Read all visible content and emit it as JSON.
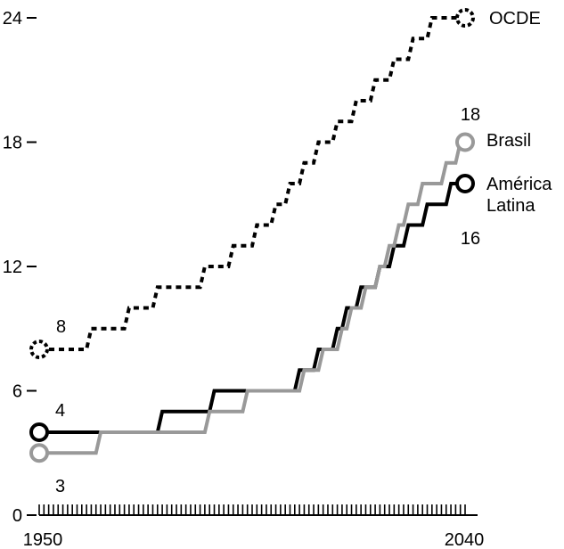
{
  "chart_data": {
    "type": "line",
    "title": "",
    "xlabel": "",
    "ylabel": "",
    "x_tick_labels": [
      "1950",
      "2040"
    ],
    "y_ticks": [
      0,
      6,
      12,
      18,
      24
    ],
    "xlim": [
      1950,
      2040
    ],
    "ylim": [
      0,
      24
    ],
    "grid": false,
    "legend": "inline-labels",
    "series": [
      {
        "name": "OCDE",
        "style": "dotted",
        "color": "#000000",
        "points": [
          [
            1950,
            8
          ],
          [
            1960,
            8
          ],
          [
            1961,
            9
          ],
          [
            1968,
            9
          ],
          [
            1969,
            10
          ],
          [
            1974,
            10
          ],
          [
            1975,
            11
          ],
          [
            1984,
            11
          ],
          [
            1985,
            12
          ],
          [
            1990,
            12
          ],
          [
            1991,
            13
          ],
          [
            1995,
            13
          ],
          [
            1996,
            14
          ],
          [
            1999,
            14
          ],
          [
            2000,
            15
          ],
          [
            2002,
            15
          ],
          [
            2003,
            16
          ],
          [
            2005,
            16
          ],
          [
            2006,
            17
          ],
          [
            2008,
            17
          ],
          [
            2009,
            18
          ],
          [
            2012,
            18
          ],
          [
            2013,
            19
          ],
          [
            2016,
            19
          ],
          [
            2017,
            20
          ],
          [
            2020,
            20
          ],
          [
            2021,
            21
          ],
          [
            2024,
            21
          ],
          [
            2025,
            22
          ],
          [
            2028,
            22
          ],
          [
            2029,
            23
          ],
          [
            2032,
            23
          ],
          [
            2033,
            24
          ],
          [
            2040,
            24
          ]
        ],
        "start_label": "8",
        "end_label": "OCDE"
      },
      {
        "name": "Brasil",
        "color": "#999999",
        "points": [
          [
            1950,
            3
          ],
          [
            1962,
            3
          ],
          [
            1963,
            4
          ],
          [
            1985,
            4
          ],
          [
            1986,
            5
          ],
          [
            1993,
            5
          ],
          [
            1994,
            6
          ],
          [
            2005,
            6
          ],
          [
            2006,
            7
          ],
          [
            2009,
            7
          ],
          [
            2010,
            8
          ],
          [
            2013,
            8
          ],
          [
            2014,
            9
          ],
          [
            2015,
            9
          ],
          [
            2016,
            10
          ],
          [
            2018,
            10
          ],
          [
            2019,
            11
          ],
          [
            2021,
            11
          ],
          [
            2022,
            12
          ],
          [
            2023,
            12
          ],
          [
            2024,
            13
          ],
          [
            2025,
            13
          ],
          [
            2026,
            14
          ],
          [
            2027,
            14
          ],
          [
            2028,
            15
          ],
          [
            2030,
            15
          ],
          [
            2031,
            16
          ],
          [
            2035,
            16
          ],
          [
            2036,
            17
          ],
          [
            2038,
            17
          ],
          [
            2039,
            18
          ],
          [
            2040,
            18
          ]
        ],
        "start_label": "",
        "end_label": "18",
        "end_name": "Brasil"
      },
      {
        "name": "América Latina",
        "name_lines": [
          "América",
          "Latina"
        ],
        "color": "#000000",
        "points": [
          [
            1950,
            4
          ],
          [
            1975,
            4
          ],
          [
            1976,
            5
          ],
          [
            1986,
            5
          ],
          [
            1987,
            6
          ],
          [
            1990,
            6
          ],
          [
            1991,
            6
          ],
          [
            2004,
            6
          ],
          [
            2005,
            7
          ],
          [
            2008,
            7
          ],
          [
            2009,
            8
          ],
          [
            2012,
            8
          ],
          [
            2013,
            9
          ],
          [
            2014,
            9
          ],
          [
            2015,
            10
          ],
          [
            2017,
            10
          ],
          [
            2018,
            11
          ],
          [
            2021,
            11
          ],
          [
            2022,
            12
          ],
          [
            2024,
            12
          ],
          [
            2025,
            13
          ],
          [
            2027,
            13
          ],
          [
            2028,
            14
          ],
          [
            2031,
            14
          ],
          [
            2032,
            15
          ],
          [
            2036,
            15
          ],
          [
            2037,
            16
          ],
          [
            2040,
            16
          ]
        ],
        "start_label": "4",
        "end_label": "16",
        "start_sub_label": "3"
      }
    ]
  }
}
